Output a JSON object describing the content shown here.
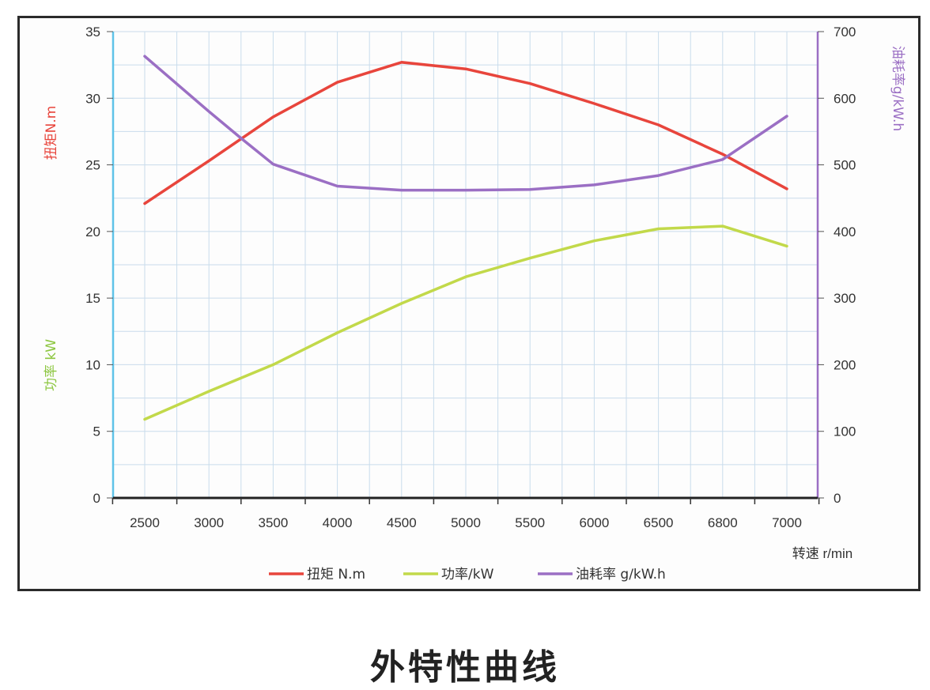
{
  "caption": "外特性曲线",
  "chart_data": {
    "type": "line",
    "title": "",
    "x_categories": [
      "2500",
      "3000",
      "3500",
      "4000",
      "4500",
      "5000",
      "5500",
      "6000",
      "6500",
      "6800",
      "7000"
    ],
    "x_axis_label": "转速 r/min",
    "y_left": {
      "range": [
        0,
        35
      ],
      "ticks": [
        0,
        5,
        10,
        15,
        20,
        25,
        30,
        35
      ],
      "labels": [
        {
          "text": "扭矩N.m",
          "color": "#e8453c"
        },
        {
          "text": "功率 kW",
          "color": "#8cc63f"
        }
      ]
    },
    "y_right": {
      "range": [
        0,
        700
      ],
      "ticks": [
        0,
        100,
        200,
        300,
        400,
        500,
        600,
        700
      ],
      "label": {
        "text": "油耗率g/kW.h",
        "color": "#9b6fc4"
      }
    },
    "grid": true,
    "legend_position": "bottom",
    "series": [
      {
        "name": "扭矩 N.m",
        "axis": "left",
        "color": "#e8453c",
        "x": [
          0,
          1,
          2,
          3,
          4,
          5,
          6,
          7,
          8,
          9,
          10
        ],
        "y": [
          22.1,
          25.3,
          28.6,
          31.2,
          32.7,
          32.2,
          31.1,
          29.6,
          28.0,
          25.8,
          23.2
        ]
      },
      {
        "name": "功率/kW",
        "axis": "left",
        "color": "#c2d94a",
        "x": [
          0,
          1,
          2,
          3,
          4,
          5,
          6,
          7,
          8,
          9,
          10
        ],
        "y": [
          5.9,
          8.0,
          10.0,
          12.4,
          14.6,
          16.6,
          18.0,
          19.3,
          20.2,
          20.4,
          18.9
        ]
      },
      {
        "name": "油耗率 g/kW.h",
        "axis": "right",
        "color": "#9b6fc4",
        "x": [
          0,
          1,
          1.5,
          2,
          3,
          4,
          5,
          6,
          7,
          8,
          9,
          10
        ],
        "y": [
          663,
          580,
          540,
          501,
          468,
          462,
          462,
          463,
          470,
          484,
          508,
          573
        ]
      }
    ]
  }
}
